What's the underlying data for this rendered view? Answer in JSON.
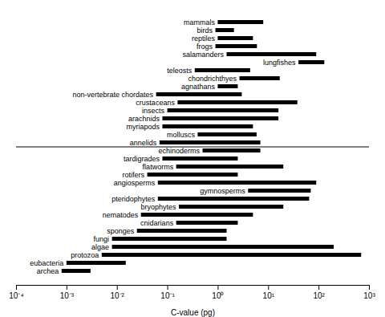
{
  "chart_data": {
    "type": "bar",
    "orientation": "horizontal",
    "xlabel": "C-value (pg)",
    "log": "x",
    "color": "#000000",
    "tick_labels": "x",
    "xlim": [
      0.0001,
      1000
    ],
    "xticks": [
      {
        "value": 0.0001,
        "label": "10⁻⁴"
      },
      {
        "value": 0.001,
        "label": "10⁻³"
      },
      {
        "value": 0.01,
        "label": "10⁻²"
      },
      {
        "value": 0.1,
        "label": "10⁻¹"
      },
      {
        "value": 1,
        "label": "10⁰"
      },
      {
        "value": 10,
        "label": "10¹"
      },
      {
        "value": 100,
        "label": "10²"
      },
      {
        "value": 1000,
        "label": "10³"
      }
    ],
    "categories": [
      "mammals",
      "birds",
      "reptiles",
      "frogs",
      "salamanders",
      "lungfishes",
      "teleosts",
      "chondrichthyes",
      "agnathans",
      "non-vertebrate chordates",
      "crustaceans",
      "insects",
      "arachnids",
      "myriapods",
      "molluscs",
      "annelids",
      "echinoderms",
      "tardigrades",
      "flatworms",
      "rotifers",
      "angiosperms",
      "gymnosperms",
      "pteridophytes",
      "bryophytes",
      "nematodes",
      "cnidarians",
      "sponges",
      "fungi",
      "algae",
      "protozoa",
      "eubacteria",
      "archea"
    ],
    "values": [
      [
        1.0,
        8.0
      ],
      [
        0.9,
        2.1
      ],
      [
        1.0,
        5.0
      ],
      [
        0.9,
        6.0
      ],
      [
        1.5,
        90.0
      ],
      [
        40.0,
        130.0
      ],
      [
        0.35,
        4.4
      ],
      [
        2.7,
        17.0
      ],
      [
        1.0,
        2.5
      ],
      [
        0.06,
        3.0
      ],
      [
        0.16,
        38.0
      ],
      [
        0.1,
        16.0
      ],
      [
        0.08,
        16.0
      ],
      [
        0.08,
        5.0
      ],
      [
        0.4,
        5.9
      ],
      [
        0.07,
        7.0
      ],
      [
        0.5,
        7.0
      ],
      [
        0.08,
        2.5
      ],
      [
        0.15,
        20.0
      ],
      [
        0.04,
        2.5
      ],
      [
        0.065,
        90.0
      ],
      [
        4.0,
        70.0
      ],
      [
        0.065,
        65.0
      ],
      [
        0.17,
        20.0
      ],
      [
        0.03,
        5.0
      ],
      [
        0.15,
        2.5
      ],
      [
        0.025,
        1.5
      ],
      [
        0.008,
        1.5
      ],
      [
        0.008,
        200.0
      ],
      [
        0.005,
        700.0
      ],
      [
        0.001,
        0.015
      ],
      [
        0.0008,
        0.003
      ]
    ]
  }
}
